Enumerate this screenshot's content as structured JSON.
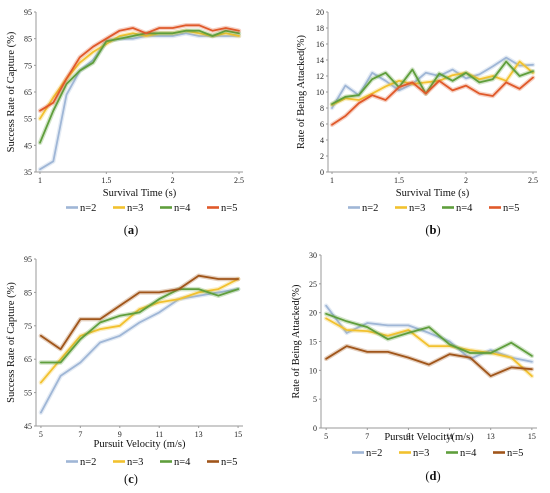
{
  "panels": [
    {
      "label_text": "(a)",
      "label_letter": "a"
    },
    {
      "label_text": "(b)",
      "label_letter": "b"
    },
    {
      "label_text": "(c)",
      "label_letter": "c"
    },
    {
      "label_text": "(d)",
      "label_letter": "d"
    }
  ],
  "chart_data": [
    {
      "type": "line",
      "panel": "a",
      "xlabel": "Survival Time (s)",
      "ylabel": "Success Rate of Capture (%)",
      "xlim": [
        0.97,
        2.53
      ],
      "ylim": [
        35,
        95
      ],
      "xticks": [
        1,
        1.5,
        2,
        2.5
      ],
      "yticks": [
        35,
        45,
        55,
        65,
        75,
        85,
        95
      ],
      "grid": "none",
      "legend": "bottom",
      "x": [
        1,
        1.1,
        1.2,
        1.3,
        1.4,
        1.5,
        1.6,
        1.7,
        1.8,
        1.9,
        2.0,
        2.1,
        2.2,
        2.3,
        2.4,
        2.5
      ],
      "series": [
        {
          "name": "n=2",
          "color": "#9fb6d6",
          "values": [
            36,
            39,
            64,
            73,
            77,
            84,
            85,
            85,
            86,
            86,
            86,
            87,
            86,
            86,
            86,
            86
          ]
        },
        {
          "name": "n=3",
          "color": "#f2c12e",
          "values": [
            55,
            63,
            70,
            76,
            80,
            83,
            86,
            87,
            86,
            87,
            87,
            88,
            87,
            86,
            87,
            86
          ]
        },
        {
          "name": "n=4",
          "color": "#5f9e3c",
          "values": [
            46,
            58,
            68,
            73,
            76,
            84,
            85,
            86,
            87,
            87,
            87,
            88,
            88,
            86,
            88,
            87
          ]
        },
        {
          "name": "n=5",
          "color": "#e0592a",
          "values": [
            58,
            61,
            70,
            78,
            82,
            85,
            88,
            89,
            87,
            89,
            89,
            90,
            90,
            88,
            89,
            88
          ]
        }
      ]
    },
    {
      "type": "line",
      "panel": "b",
      "xlabel": "Survival Time (s)",
      "ylabel": "Rate of Being Attacked(%)",
      "xlim": [
        0.97,
        2.53
      ],
      "ylim": [
        0,
        20
      ],
      "xticks": [
        1,
        1.5,
        2,
        2.5
      ],
      "yticks": [
        0,
        2,
        4,
        6,
        8,
        10,
        12,
        14,
        16,
        18,
        20
      ],
      "grid": "none",
      "legend": "bottom",
      "x": [
        1,
        1.1,
        1.2,
        1.3,
        1.4,
        1.5,
        1.6,
        1.7,
        1.8,
        1.9,
        2.0,
        2.1,
        2.2,
        2.3,
        2.4,
        2.5
      ],
      "series": [
        {
          "name": "n=2",
          "color": "#9fb6d6",
          "values": [
            8.0,
            10.8,
            9.6,
            12.4,
            11.4,
            10.2,
            11.0,
            12.4,
            12.0,
            12.8,
            11.7,
            12.2,
            13.2,
            14.3,
            13.3,
            13.4
          ]
        },
        {
          "name": "n=3",
          "color": "#f2c12e",
          "values": [
            8.4,
            9.2,
            9.0,
            9.8,
            10.7,
            11.4,
            11.0,
            11.2,
            11.4,
            12.1,
            12.4,
            11.6,
            12.0,
            11.4,
            13.8,
            12.4
          ]
        },
        {
          "name": "n=4",
          "color": "#5f9e3c",
          "values": [
            8.5,
            9.4,
            9.6,
            11.6,
            12.4,
            10.6,
            12.8,
            9.8,
            12.3,
            11.4,
            12.4,
            11.2,
            11.6,
            13.8,
            12.0,
            12.6
          ]
        },
        {
          "name": "n=5",
          "color": "#e0592a",
          "values": [
            5.9,
            7.0,
            8.6,
            9.6,
            9.0,
            10.6,
            11.2,
            9.8,
            11.4,
            10.2,
            10.8,
            9.8,
            9.5,
            11.2,
            10.4,
            11.8
          ]
        }
      ]
    },
    {
      "type": "line",
      "panel": "c",
      "xlabel": "Pursuit Velocity (m/s)",
      "ylabel": "Success Rate of Capture (%)",
      "xlim": [
        4.75,
        15.25
      ],
      "ylim": [
        45,
        95
      ],
      "xticks": [
        5,
        7,
        9,
        11,
        13,
        15
      ],
      "yticks": [
        45,
        55,
        65,
        75,
        85,
        95
      ],
      "grid": "none",
      "legend": "bottom",
      "x": [
        5,
        6,
        7,
        8,
        9,
        10,
        11,
        12,
        13,
        14,
        15
      ],
      "series": [
        {
          "name": "n=2",
          "color": "#9fb6d6",
          "values": [
            49,
            60,
            64,
            70,
            72,
            76,
            79,
            83,
            84,
            85,
            86
          ]
        },
        {
          "name": "n=3",
          "color": "#f2c12e",
          "values": [
            58,
            65,
            72,
            74,
            75,
            80,
            82,
            83,
            85,
            86,
            89
          ]
        },
        {
          "name": "n=4",
          "color": "#5f9e3c",
          "values": [
            64,
            64,
            71,
            76,
            78,
            79,
            83,
            86,
            86,
            84,
            86
          ]
        },
        {
          "name": "n=5",
          "color": "#a0551a",
          "values": [
            72,
            68,
            77,
            77,
            81,
            85,
            85,
            86,
            90,
            89,
            89
          ]
        }
      ]
    },
    {
      "type": "line",
      "panel": "d",
      "xlabel": "Pursuit Velocity(m/s)",
      "ylabel": "Rate of Being Attacked(%)",
      "xlim": [
        4.75,
        15.25
      ],
      "ylim": [
        0,
        30
      ],
      "xticks": [
        5,
        7,
        9,
        11,
        13,
        15
      ],
      "yticks": [
        0,
        5,
        10,
        15,
        20,
        25,
        30
      ],
      "grid": "none",
      "legend": "bottom",
      "x": [
        5,
        6,
        7,
        8,
        9,
        10,
        11,
        12,
        13,
        14,
        15
      ],
      "series": [
        {
          "name": "n=2",
          "color": "#9fb6d6",
          "values": [
            21.2,
            16.5,
            18.2,
            17.8,
            17.8,
            16.5,
            15.0,
            12.0,
            13.5,
            12.2,
            11.5
          ]
        },
        {
          "name": "n=3",
          "color": "#f2c12e",
          "values": [
            19.0,
            17.0,
            16.8,
            16.0,
            17.0,
            14.2,
            14.2,
            13.5,
            13.0,
            12.2,
            9.0
          ]
        },
        {
          "name": "n=4",
          "color": "#5f9e3c",
          "values": [
            19.8,
            18.5,
            17.5,
            15.4,
            16.5,
            17.5,
            14.5,
            13.0,
            13.0,
            14.8,
            12.5
          ]
        },
        {
          "name": "n=5",
          "color": "#a0551a",
          "values": [
            12.0,
            14.2,
            13.2,
            13.2,
            12.2,
            11.0,
            12.8,
            12.2,
            9.0,
            10.5,
            10.2
          ]
        }
      ]
    }
  ]
}
